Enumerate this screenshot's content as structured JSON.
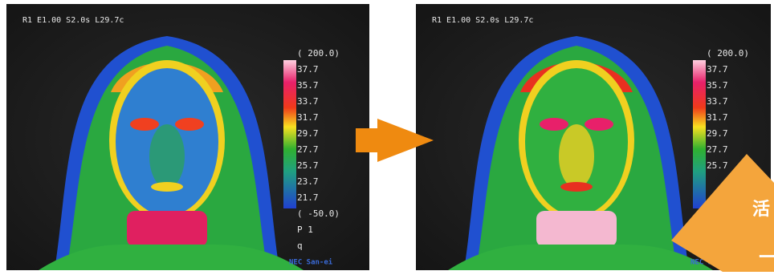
{
  "panels": [
    {
      "header": "R1 E1.00 S2.0s L29.7c",
      "scale_labels": [
        "( 200.0)",
        "37.7",
        "35.7",
        "33.7",
        "31.7",
        "29.7",
        "27.7",
        "25.7",
        "23.7",
        "21.7",
        "( -50.0)",
        "P 1",
        "q"
      ],
      "brand": "NEC San-ei"
    },
    {
      "header": "R1 E1.00 S2.0s L29.7c",
      "scale_labels": [
        "( 200.0)",
        "37.7",
        "35.7",
        "33.7",
        "31.7",
        "29.7",
        "27.7",
        "25.7"
      ],
      "brand": "NEC San-ei"
    }
  ],
  "badge": {
    "text": "活",
    "subtext": "ー"
  }
}
